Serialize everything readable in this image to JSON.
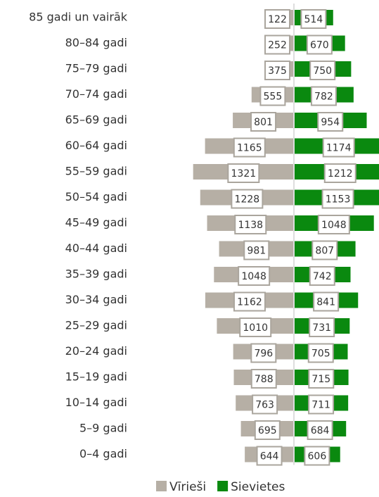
{
  "chart_data": {
    "type": "pyramid",
    "categories": [
      "85 gadi un vairāk",
      "80–84 gadi",
      "75–79 gadi",
      "70–74 gadi",
      "65–69 gadi",
      "60–64 gadi",
      "55–59 gadi",
      "50–54 gadi",
      "45–49 gadi",
      "40–44 gadi",
      "35–39 gadi",
      "30–34 gadi",
      "25–29 gadi",
      "20–24 gadi",
      "15–19 gadi",
      "10–14 gadi",
      "5–9 gadi",
      "0–4 gadi"
    ],
    "series": [
      {
        "name": "Vīrieši",
        "color": "#b6afa5",
        "values": [
          122,
          252,
          375,
          555,
          801,
          1165,
          1321,
          1228,
          1138,
          981,
          1048,
          1162,
          1010,
          796,
          788,
          763,
          695,
          644
        ]
      },
      {
        "name": "Sievietes",
        "color": "#0a890f",
        "values": [
          514,
          670,
          750,
          782,
          954,
          1174,
          1212,
          1153,
          1048,
          807,
          742,
          841,
          731,
          705,
          715,
          711,
          684,
          606
        ]
      }
    ],
    "legend": "bottom"
  }
}
